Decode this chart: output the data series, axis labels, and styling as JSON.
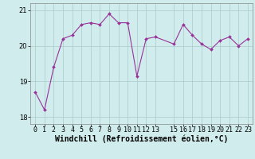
{
  "x": [
    0,
    1,
    2,
    3,
    4,
    5,
    6,
    7,
    8,
    9,
    10,
    11,
    12,
    13,
    15,
    16,
    17,
    18,
    19,
    20,
    21,
    22,
    23
  ],
  "y": [
    18.7,
    18.2,
    19.4,
    20.2,
    20.3,
    20.6,
    20.65,
    20.6,
    20.9,
    20.65,
    20.65,
    19.15,
    20.2,
    20.25,
    20.05,
    20.6,
    20.3,
    20.05,
    19.9,
    20.15,
    20.25,
    20.0,
    20.2
  ],
  "xlim": [
    -0.5,
    23.5
  ],
  "ylim": [
    17.8,
    21.2
  ],
  "yticks": [
    18,
    19,
    20,
    21
  ],
  "xtick_positions": [
    0,
    1,
    2,
    3,
    4,
    5,
    6,
    7,
    8,
    9,
    10,
    11,
    12,
    13,
    15,
    16,
    17,
    18,
    19,
    20,
    21,
    22,
    23
  ],
  "xtick_labels": [
    "0",
    "1",
    "2",
    "3",
    "4",
    "5",
    "6",
    "7",
    "8",
    "9",
    "10",
    "11",
    "12",
    "13",
    "15",
    "16",
    "17",
    "18",
    "19",
    "20",
    "21",
    "22",
    "23"
  ],
  "xlabel": "Windchill (Refroidissement éolien,°C)",
  "line_color": "#993399",
  "marker": "D",
  "marker_size": 2.0,
  "bg_color": "#d0ecec",
  "grid_color": "#aacccc",
  "xlabel_fontsize": 7,
  "tick_fontsize": 6
}
